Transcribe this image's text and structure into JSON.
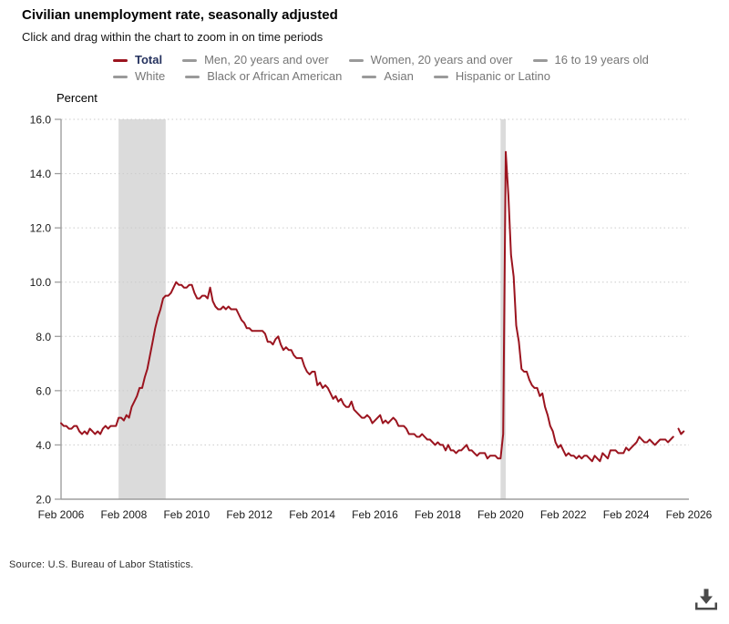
{
  "header": {
    "title": "Civilian unemployment rate, seasonally adjusted",
    "subtitle": "Click and drag within the chart to zoom in on time periods"
  },
  "legend": {
    "rows": [
      [
        {
          "label": "Total",
          "active": true
        },
        {
          "label": "Men, 20 years and over",
          "active": false
        },
        {
          "label": "Women, 20 years and over",
          "active": false
        },
        {
          "label": "16 to 19 years old",
          "active": false
        }
      ],
      [
        {
          "label": "White",
          "active": false
        },
        {
          "label": "Black or African American",
          "active": false
        },
        {
          "label": "Asian",
          "active": false
        },
        {
          "label": "Hispanic or Latino",
          "active": false
        }
      ]
    ],
    "active_swatch_color": "#9b141f",
    "active_text_color": "#26335f",
    "inactive_swatch_color": "#9a9a9a",
    "inactive_text_color": "#767676"
  },
  "chart_data": {
    "type": "line",
    "title": "Civilian unemployment rate, seasonally adjusted",
    "xlabel": "",
    "ylabel": "Percent",
    "ylim": [
      2.0,
      16.0
    ],
    "y_ticks": [
      2.0,
      4.0,
      6.0,
      8.0,
      10.0,
      12.0,
      14.0,
      16.0
    ],
    "y_tick_format": "one_decimal",
    "grid": "horizontal-dotted",
    "legend_position": "top",
    "start_month": "2006-02",
    "end_month": "2026-02",
    "x_tick_interval_months": 24,
    "x_tick_labels": [
      "Feb 2006",
      "Feb 2008",
      "Feb 2010",
      "Feb 2012",
      "Feb 2014",
      "Feb 2016",
      "Feb 2018",
      "Feb 2020",
      "Feb 2022",
      "Feb 2024",
      "Feb 2026"
    ],
    "recessions": [
      {
        "from": "2007-12",
        "to": "2009-06"
      },
      {
        "from": "2020-02",
        "to": "2020-04"
      }
    ],
    "series": [
      {
        "name": "Total",
        "unit": "Percent",
        "monthly_from": "2006-02",
        "values": [
          4.8,
          4.7,
          4.7,
          4.6,
          4.6,
          4.7,
          4.7,
          4.5,
          4.4,
          4.5,
          4.4,
          4.6,
          4.5,
          4.4,
          4.5,
          4.4,
          4.6,
          4.7,
          4.6,
          4.7,
          4.7,
          4.7,
          5.0,
          5.0,
          4.9,
          5.1,
          5.0,
          5.4,
          5.6,
          5.8,
          6.1,
          6.1,
          6.5,
          6.8,
          7.3,
          7.8,
          8.3,
          8.7,
          9.0,
          9.4,
          9.5,
          9.5,
          9.6,
          9.8,
          10.0,
          9.9,
          9.9,
          9.8,
          9.8,
          9.9,
          9.9,
          9.6,
          9.4,
          9.4,
          9.5,
          9.5,
          9.4,
          9.8,
          9.3,
          9.1,
          9.0,
          9.0,
          9.1,
          9.0,
          9.1,
          9.0,
          9.0,
          9.0,
          8.8,
          8.6,
          8.5,
          8.3,
          8.3,
          8.2,
          8.2,
          8.2,
          8.2,
          8.2,
          8.1,
          7.8,
          7.8,
          7.7,
          7.9,
          8.0,
          7.7,
          7.5,
          7.6,
          7.5,
          7.5,
          7.3,
          7.2,
          7.2,
          7.2,
          6.9,
          6.7,
          6.6,
          6.7,
          6.7,
          6.2,
          6.3,
          6.1,
          6.2,
          6.1,
          5.9,
          5.7,
          5.8,
          5.6,
          5.7,
          5.5,
          5.4,
          5.4,
          5.6,
          5.3,
          5.2,
          5.1,
          5.0,
          5.0,
          5.1,
          5.0,
          4.8,
          4.9,
          5.0,
          5.1,
          4.8,
          4.9,
          4.8,
          4.9,
          5.0,
          4.9,
          4.7,
          4.7,
          4.7,
          4.6,
          4.4,
          4.4,
          4.4,
          4.3,
          4.3,
          4.4,
          4.3,
          4.2,
          4.2,
          4.1,
          4.0,
          4.1,
          4.0,
          4.0,
          3.8,
          4.0,
          3.8,
          3.8,
          3.7,
          3.8,
          3.8,
          3.9,
          4.0,
          3.8,
          3.8,
          3.7,
          3.6,
          3.7,
          3.7,
          3.7,
          3.5,
          3.6,
          3.6,
          3.6,
          3.5,
          3.5,
          4.4,
          14.8,
          13.2,
          11.0,
          10.2,
          8.4,
          7.8,
          6.8,
          6.7,
          6.7,
          6.4,
          6.2,
          6.1,
          6.1,
          5.8,
          5.9,
          5.4,
          5.1,
          4.7,
          4.5,
          4.1,
          3.9,
          4.0,
          3.8,
          3.6,
          3.7,
          3.6,
          3.6,
          3.5,
          3.6,
          3.5,
          3.6,
          3.6,
          3.5,
          3.4,
          3.6,
          3.5,
          3.4,
          3.7,
          3.6,
          3.5,
          3.8,
          3.8,
          3.8,
          3.7,
          3.7,
          3.7,
          3.9,
          3.8,
          3.9,
          4.0,
          4.1,
          4.3,
          4.2,
          4.1,
          4.1,
          4.2,
          4.1,
          4.0,
          4.1,
          4.2,
          4.2,
          4.2,
          4.1,
          4.2,
          4.3,
          null,
          4.6,
          4.4,
          4.5
        ]
      }
    ]
  },
  "colors": {
    "line": "#9b141f",
    "recession_band": "#dbdbdb",
    "gridline": "#cbcbcb",
    "axis": "#9e9e9e",
    "tick_label": "#1a1a1a",
    "icon": "#4a4a4a"
  },
  "footer": {
    "source": "Source: U.S. Bureau of Labor Statistics.",
    "download_icon": "download-icon"
  }
}
